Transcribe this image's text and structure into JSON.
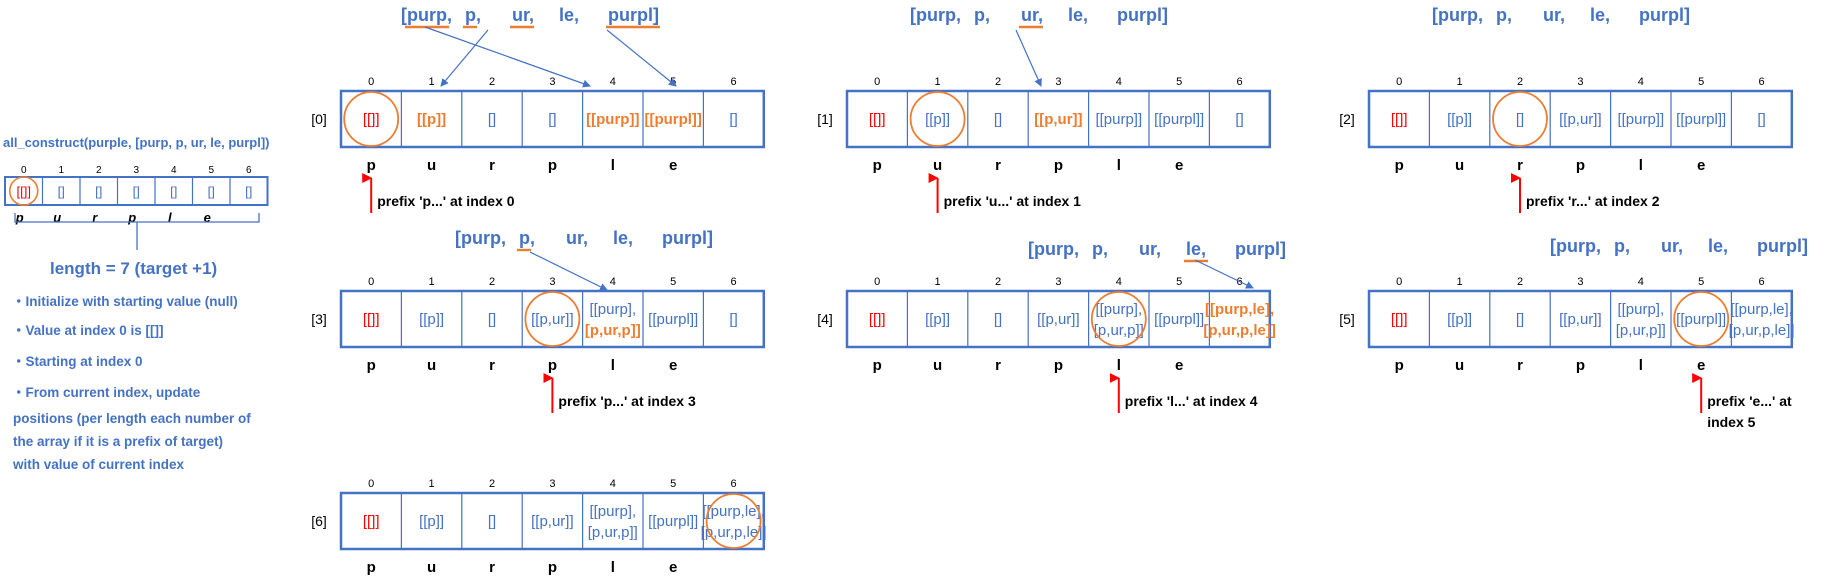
{
  "colors": {
    "blue": "#4472c4",
    "orange": "#ed7d31",
    "red": "#ff0000",
    "black": "#000000"
  },
  "left_panel": {
    "title": "all_construct(purple, [purp, p, ur, le, purpl])",
    "indices": [
      "0",
      "1",
      "2",
      "3",
      "4",
      "5",
      "6"
    ],
    "cells": [
      "[[]]",
      "[]",
      "[]",
      "[]",
      "[]",
      "[]",
      "[]"
    ],
    "chars": [
      "p",
      "u",
      "r",
      "p",
      "l",
      "e"
    ],
    "length_label": "length = 7 (target +1)",
    "bullets": [
      "・Initialize with starting value (null)",
      "・Value at index 0 is [[]]",
      "・Starting at index 0",
      "・From current index, update",
      "positions (per length each number of",
      "the array if it is a prefix of target)",
      "with value of current index"
    ]
  },
  "steps": [
    {
      "label": "[0]",
      "array_text": [
        "[purp,",
        "p,",
        "ur,",
        "le,",
        "purpl]"
      ],
      "underlined_words": [
        0,
        1,
        2,
        4
      ],
      "indices": [
        "0",
        "1",
        "2",
        "3",
        "4",
        "5",
        "6"
      ],
      "cells": [
        {
          "lines": [
            "[[]]"
          ],
          "color": "red",
          "bold": false
        },
        {
          "lines": [
            "[[p]]"
          ],
          "color": "orange",
          "bold": true
        },
        {
          "lines": [
            "[]"
          ],
          "color": "blue",
          "bold": false
        },
        {
          "lines": [
            "[]"
          ],
          "color": "blue",
          "bold": false
        },
        {
          "lines": [
            "[[purp]]"
          ],
          "color": "orange",
          "bold": true
        },
        {
          "lines": [
            "[[purpl]]"
          ],
          "color": "orange",
          "bold": true
        },
        {
          "lines": [
            "[]"
          ],
          "color": "blue",
          "bold": false
        }
      ],
      "circled_index": 0,
      "chars": [
        "p",
        "u",
        "r",
        "p",
        "l",
        "e"
      ],
      "pointer_index": 0,
      "note": [
        "prefix 'p...' at index 0"
      ]
    },
    {
      "label": "[1]",
      "array_text": [
        "[purp,",
        "p,",
        "ur,",
        "le,",
        "purpl]"
      ],
      "underlined_words": [
        2
      ],
      "indices": [
        "0",
        "1",
        "2",
        "3",
        "4",
        "5",
        "6"
      ],
      "cells": [
        {
          "lines": [
            "[[]]"
          ],
          "color": "red",
          "bold": false
        },
        {
          "lines": [
            "[[p]]"
          ],
          "color": "blue",
          "bold": false
        },
        {
          "lines": [
            "[]"
          ],
          "color": "blue",
          "bold": false
        },
        {
          "lines": [
            "[[p,ur]]"
          ],
          "color": "orange",
          "bold": true
        },
        {
          "lines": [
            "[[purp]]"
          ],
          "color": "blue",
          "bold": false
        },
        {
          "lines": [
            "[[purpl]]"
          ],
          "color": "blue",
          "bold": false
        },
        {
          "lines": [
            "[]"
          ],
          "color": "blue",
          "bold": false
        }
      ],
      "circled_index": 1,
      "chars": [
        "p",
        "u",
        "r",
        "p",
        "l",
        "e"
      ],
      "pointer_index": 1,
      "note": [
        "prefix 'u...' at index 1"
      ]
    },
    {
      "label": "[2]",
      "array_text": [
        "[purp,",
        "p,",
        "ur,",
        "le,",
        "purpl]"
      ],
      "underlined_words": [],
      "indices": [
        "0",
        "1",
        "2",
        "3",
        "4",
        "5",
        "6"
      ],
      "cells": [
        {
          "lines": [
            "[[]]"
          ],
          "color": "red",
          "bold": false
        },
        {
          "lines": [
            "[[p]]"
          ],
          "color": "blue",
          "bold": false
        },
        {
          "lines": [
            "[]"
          ],
          "color": "blue",
          "bold": false
        },
        {
          "lines": [
            "[[p,ur]]"
          ],
          "color": "blue",
          "bold": false
        },
        {
          "lines": [
            "[[purp]]"
          ],
          "color": "blue",
          "bold": false
        },
        {
          "lines": [
            "[[purpl]]"
          ],
          "color": "blue",
          "bold": false
        },
        {
          "lines": [
            "[]"
          ],
          "color": "blue",
          "bold": false
        }
      ],
      "circled_index": 2,
      "chars": [
        "p",
        "u",
        "r",
        "p",
        "l",
        "e"
      ],
      "pointer_index": 2,
      "note": [
        "prefix 'r...' at index 2"
      ]
    },
    {
      "label": "[3]",
      "array_text": [
        "[purp,",
        "p,",
        "ur,",
        "le,",
        "purpl]"
      ],
      "underlined_words": [
        1
      ],
      "indices": [
        "0",
        "1",
        "2",
        "3",
        "4",
        "5",
        "6"
      ],
      "cells": [
        {
          "lines": [
            "[[]]"
          ],
          "color": "red",
          "bold": false
        },
        {
          "lines": [
            "[[p]]"
          ],
          "color": "blue",
          "bold": false
        },
        {
          "lines": [
            "[]"
          ],
          "color": "blue",
          "bold": false
        },
        {
          "lines": [
            "[[p,ur]]"
          ],
          "color": "blue",
          "bold": false
        },
        {
          "lines": [
            "[[purp],",
            "[p,ur,p]]"
          ],
          "color": "blue",
          "color2": "orange",
          "bold": false
        },
        {
          "lines": [
            "[[purpl]]"
          ],
          "color": "blue",
          "bold": false
        },
        {
          "lines": [
            "[]"
          ],
          "color": "blue",
          "bold": false
        }
      ],
      "circled_index": 3,
      "chars": [
        "p",
        "u",
        "r",
        "p",
        "l",
        "e"
      ],
      "pointer_index": 3,
      "note": [
        "prefix 'p...' at index 3"
      ]
    },
    {
      "label": "[4]",
      "array_text": [
        "[purp,",
        "p,",
        "ur,",
        "le,",
        "purpl]"
      ],
      "underlined_words": [
        3
      ],
      "indices": [
        "0",
        "1",
        "2",
        "3",
        "4",
        "5",
        "6"
      ],
      "cells": [
        {
          "lines": [
            "[[]]"
          ],
          "color": "red",
          "bold": false
        },
        {
          "lines": [
            "[[p]]"
          ],
          "color": "blue",
          "bold": false
        },
        {
          "lines": [
            "[]"
          ],
          "color": "blue",
          "bold": false
        },
        {
          "lines": [
            "[[p,ur]]"
          ],
          "color": "blue",
          "bold": false
        },
        {
          "lines": [
            "[[purp],",
            "[p,ur,p]]"
          ],
          "color": "blue",
          "bold": false
        },
        {
          "lines": [
            "[[purpl]]"
          ],
          "color": "blue",
          "bold": false
        },
        {
          "lines": [
            "[[purp,le],",
            "[p,ur,p,le]]"
          ],
          "color": "orange",
          "bold": true
        }
      ],
      "circled_index": 4,
      "chars": [
        "p",
        "u",
        "r",
        "p",
        "l",
        "e"
      ],
      "pointer_index": 4,
      "note": [
        "prefix 'l...' at index 4"
      ]
    },
    {
      "label": "[5]",
      "array_text": [
        "[purp,",
        "p,",
        "ur,",
        "le,",
        "purpl]"
      ],
      "underlined_words": [],
      "indices": [
        "0",
        "1",
        "2",
        "3",
        "4",
        "5",
        "6"
      ],
      "cells": [
        {
          "lines": [
            "[[]]"
          ],
          "color": "red",
          "bold": false
        },
        {
          "lines": [
            "[[p]]"
          ],
          "color": "blue",
          "bold": false
        },
        {
          "lines": [
            "[]"
          ],
          "color": "blue",
          "bold": false
        },
        {
          "lines": [
            "[[p,ur]]"
          ],
          "color": "blue",
          "bold": false
        },
        {
          "lines": [
            "[[purp],",
            "[p,ur,p]]"
          ],
          "color": "blue",
          "bold": false
        },
        {
          "lines": [
            "[[purpl]]"
          ],
          "color": "blue",
          "bold": false
        },
        {
          "lines": [
            "[[purp,le],",
            "[p,ur,p,le]]"
          ],
          "color": "blue",
          "bold": false
        }
      ],
      "circled_index": 5,
      "chars": [
        "p",
        "u",
        "r",
        "p",
        "l",
        "e"
      ],
      "pointer_index": 5,
      "note": [
        "prefix 'e...' at",
        "index 5"
      ]
    },
    {
      "label": "[6]",
      "array_text": [],
      "underlined_words": [],
      "indices": [
        "0",
        "1",
        "2",
        "3",
        "4",
        "5",
        "6"
      ],
      "cells": [
        {
          "lines": [
            "[[]]"
          ],
          "color": "red",
          "bold": false
        },
        {
          "lines": [
            "[[p]]"
          ],
          "color": "blue",
          "bold": false
        },
        {
          "lines": [
            "[]"
          ],
          "color": "blue",
          "bold": false
        },
        {
          "lines": [
            "[[p,ur]]"
          ],
          "color": "blue",
          "bold": false
        },
        {
          "lines": [
            "[[purp],",
            "[p,ur,p]]"
          ],
          "color": "blue",
          "bold": false
        },
        {
          "lines": [
            "[[purpl]]"
          ],
          "color": "blue",
          "bold": false
        },
        {
          "lines": [
            "[[purp,le],",
            "[p,ur,p,le]]"
          ],
          "color": "blue",
          "bold": false
        }
      ],
      "circled_index": 6,
      "chars": [
        "p",
        "u",
        "r",
        "p",
        "l",
        "e"
      ],
      "pointer_index": null,
      "note": []
    }
  ]
}
